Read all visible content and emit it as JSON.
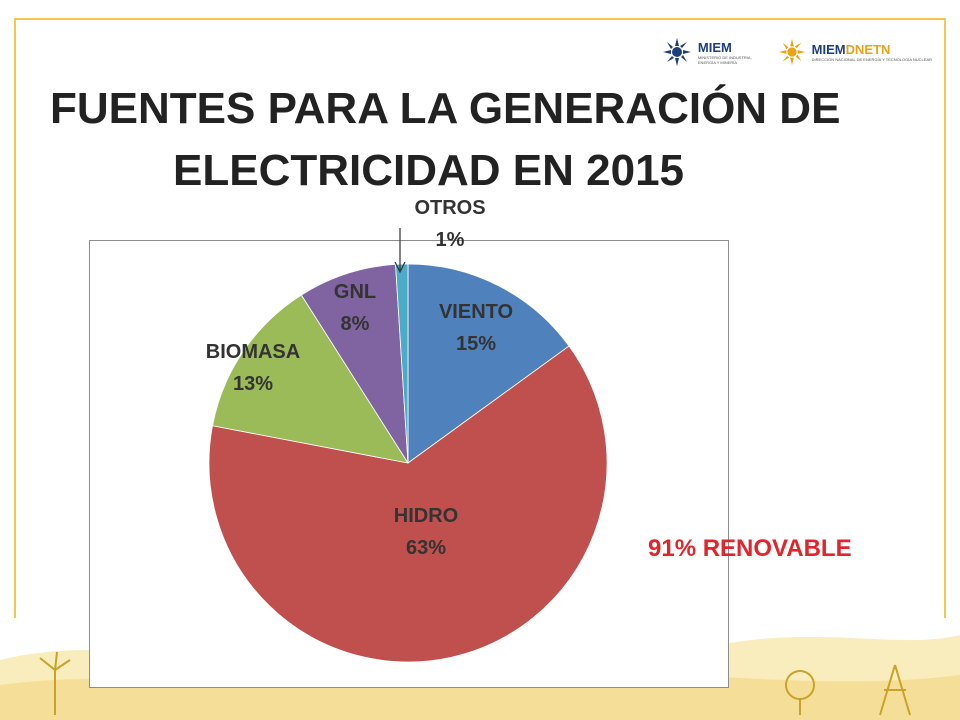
{
  "slide": {
    "title_line1": "FUENTES PARA LA GENERACIÓN DE",
    "title_line2": "ELECTRICIDAD EN 2015",
    "annotation": "91% RENOVABLE"
  },
  "logos": [
    {
      "name": "MIEM",
      "text": "MIEM",
      "sub1": "MINISTERIO DE INDUSTRIA,",
      "sub2": "ENERGÍA Y MINERÍA"
    },
    {
      "name": "MIEMDNETN",
      "text_main": "MIEM",
      "text_accent": "DNETN",
      "sub1": "DIRECCIÓN NACIONAL DE ENERGÍA Y TECNOLOGÍA NUCLEAR"
    }
  ],
  "chart_data": {
    "type": "pie",
    "title": "FUENTES PARA LA GENERACIÓN DE ELECTRICIDAD EN 2015",
    "categories": [
      "VIENTO",
      "HIDRO",
      "BIOMASA",
      "GNL",
      "OTROS"
    ],
    "values": [
      15,
      63,
      13,
      8,
      1
    ],
    "labels": [
      "15%",
      "63%",
      "13%",
      "8%",
      "1%"
    ],
    "colors": [
      "#4f81bd",
      "#c0504d",
      "#9bbb59",
      "#8064a2",
      "#4bacc6"
    ],
    "start_angle_deg": 0,
    "direction": "clockwise",
    "annotation": "91% RENOVABLE"
  },
  "colors": {
    "accent_renewable": "#e0262c",
    "frame": "#f2c94c"
  }
}
